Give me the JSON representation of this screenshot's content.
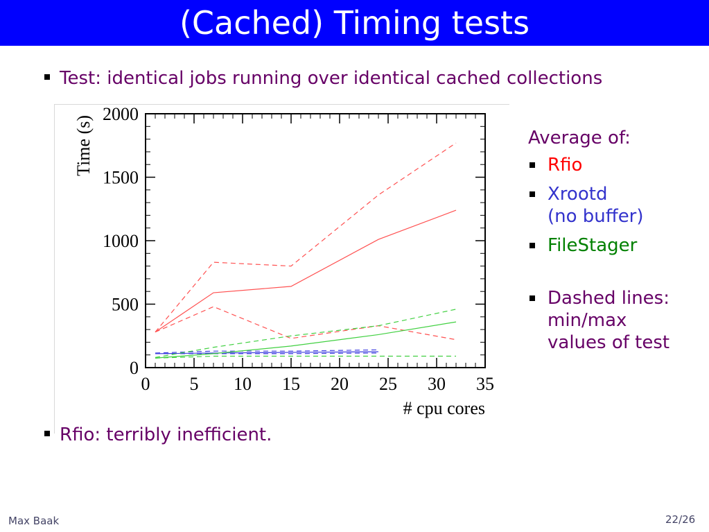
{
  "slide": {
    "title": "(Cached) Timing tests",
    "bullets": [
      "Test: identical jobs running over identical cached collections",
      "Rfio: terribly inefficient."
    ],
    "side": {
      "heading": "Average of:",
      "items": [
        {
          "text": "Rfio",
          "color": "#ff0000"
        },
        {
          "text": "Xrootd",
          "color": "#3333cc"
        },
        {
          "text": "(no buffer)",
          "color": "#3333cc"
        },
        {
          "text": "FileStager",
          "color": "#008000"
        }
      ],
      "note_lines": [
        "Dashed lines:",
        "min/max",
        "values of test"
      ]
    },
    "footer": {
      "author": "Max Baak",
      "page": "22/26"
    }
  },
  "chart_data": {
    "type": "line",
    "title": "",
    "xlabel": "# cpu cores",
    "ylabel": "Time (s)",
    "xlim": [
      0,
      35
    ],
    "ylim": [
      0,
      2000
    ],
    "xticks": [
      0,
      5,
      10,
      15,
      20,
      25,
      30,
      35
    ],
    "yticks": [
      0,
      500,
      1000,
      1500,
      2000
    ],
    "grid": false,
    "series": [
      {
        "name": "Rfio",
        "style": "solid",
        "color": "#ff5050",
        "x": [
          1,
          7,
          15,
          24,
          32
        ],
        "y": [
          280,
          590,
          640,
          1010,
          1240
        ]
      },
      {
        "name": "",
        "style": "dashed",
        "color": "#ff5050",
        "x": [
          1,
          7,
          15,
          24,
          32
        ],
        "y": [
          280,
          830,
          800,
          1360,
          1770
        ]
      },
      {
        "name": "",
        "style": "dashed",
        "color": "#ff5050",
        "x": [
          1,
          7,
          15,
          24,
          32
        ],
        "y": [
          280,
          480,
          230,
          330,
          220
        ]
      },
      {
        "name": "Xrootd",
        "style": "solid",
        "color": "#4040e0",
        "x": [
          1,
          7,
          15,
          24
        ],
        "y": [
          110,
          115,
          120,
          125
        ]
      },
      {
        "name": "",
        "style": "dashed",
        "color": "#4040e0",
        "x": [
          1,
          7,
          15,
          24
        ],
        "y": [
          115,
          130,
          130,
          140
        ]
      },
      {
        "name": "",
        "style": "dashed",
        "color": "#4040e0",
        "x": [
          1,
          7,
          15,
          24
        ],
        "y": [
          110,
          110,
          110,
          115
        ]
      },
      {
        "name": "FileStager",
        "style": "solid",
        "color": "#40d040",
        "x": [
          1,
          7,
          15,
          24,
          32
        ],
        "y": [
          75,
          110,
          170,
          260,
          360
        ]
      },
      {
        "name": "",
        "style": "dashed",
        "color": "#40d040",
        "x": [
          1,
          7,
          15,
          24,
          32
        ],
        "y": [
          80,
          160,
          250,
          330,
          460
        ]
      },
      {
        "name": "",
        "style": "dashed",
        "color": "#40d040",
        "x": [
          1,
          7,
          15,
          24,
          32
        ],
        "y": [
          75,
          90,
          90,
          90,
          90
        ]
      }
    ]
  }
}
